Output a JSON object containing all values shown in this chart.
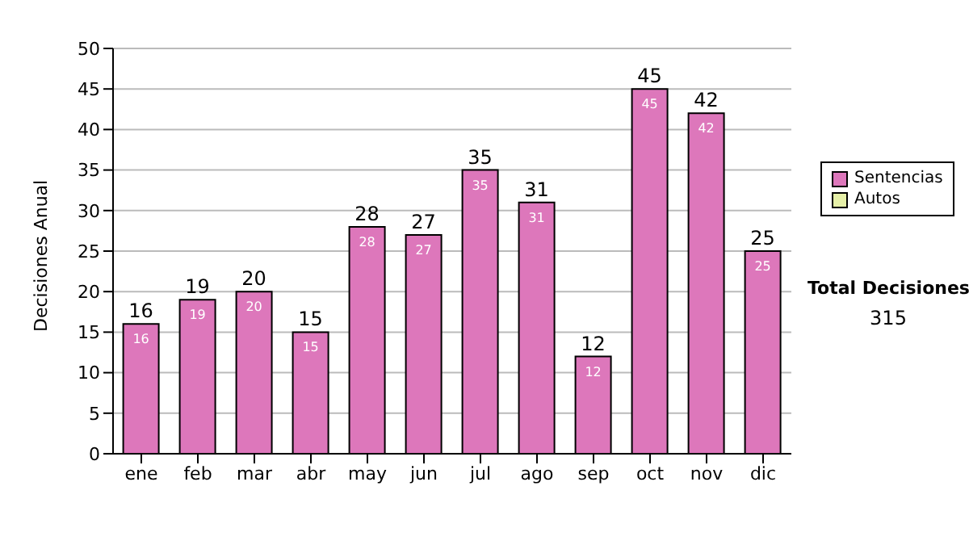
{
  "chart_data": {
    "type": "bar",
    "ylabel": "Decisiones Anual",
    "categories": [
      "ene",
      "feb",
      "mar",
      "abr",
      "may",
      "jun",
      "jul",
      "ago",
      "sep",
      "oct",
      "nov",
      "dic"
    ],
    "series": [
      {
        "name": "Sentencias",
        "color": "#dd77bb",
        "values": [
          16,
          19,
          20,
          15,
          28,
          27,
          35,
          31,
          12,
          45,
          42,
          25
        ]
      },
      {
        "name": "Autos",
        "color": "#e6f0a8",
        "values": [
          null,
          null,
          null,
          null,
          null,
          null,
          null,
          null,
          null,
          null,
          null,
          null
        ]
      }
    ],
    "stacked": true,
    "data_labels": true,
    "totals": [
      "16",
      "19",
      "20",
      "15",
      "28",
      "27",
      "35",
      "31",
      "12",
      "45",
      "42",
      "25"
    ],
    "ylim": [
      0,
      50
    ],
    "yticks": [
      0,
      5,
      10,
      15,
      20,
      25,
      30,
      35,
      40,
      45,
      50
    ],
    "grid": "y",
    "legend": "right",
    "annotations": [
      "Total Decisiones",
      "315"
    ]
  }
}
